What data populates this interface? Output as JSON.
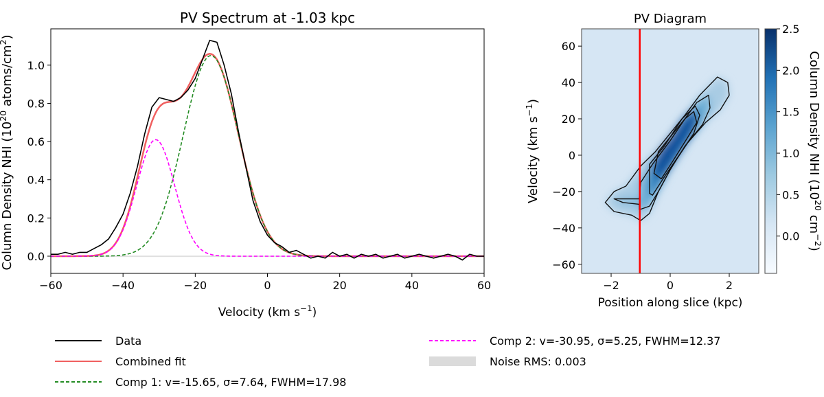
{
  "chart_data": [
    {
      "type": "line",
      "title": "PV Spectrum at -1.03 kpc",
      "xlabel": "Velocity (km s⁻¹)",
      "ylabel": "Column Density NHI (10²⁰ atoms/cm²)",
      "xlim": [
        -60,
        60
      ],
      "ylim": [
        -0.09,
        1.19
      ],
      "xticks": [
        -60,
        -40,
        -20,
        0,
        20,
        40,
        60
      ],
      "yticks": [
        0.0,
        0.2,
        0.4,
        0.6,
        0.8,
        1.0
      ],
      "grid": false,
      "legend_placement": "below",
      "data": {
        "name": "Data",
        "color": "#000000",
        "x": [
          -60,
          -58,
          -56,
          -54,
          -52,
          -50,
          -48,
          -46,
          -44,
          -42,
          -40,
          -38,
          -36,
          -34,
          -32,
          -30,
          -28,
          -26,
          -24,
          -22,
          -20,
          -18,
          -16,
          -14,
          -12,
          -10,
          -8,
          -6,
          -4,
          -2,
          0,
          2,
          4,
          6,
          8,
          10,
          12,
          14,
          16,
          18,
          20,
          22,
          24,
          26,
          28,
          30,
          32,
          34,
          36,
          38,
          40,
          42,
          44,
          46,
          48,
          50,
          52,
          54,
          56,
          58,
          60
        ],
        "y": [
          0.01,
          0.01,
          0.02,
          0.01,
          0.02,
          0.02,
          0.04,
          0.06,
          0.09,
          0.15,
          0.22,
          0.33,
          0.47,
          0.64,
          0.78,
          0.83,
          0.82,
          0.81,
          0.83,
          0.87,
          0.93,
          1.03,
          1.13,
          1.12,
          1.0,
          0.85,
          0.65,
          0.47,
          0.29,
          0.18,
          0.11,
          0.07,
          0.05,
          0.02,
          0.03,
          0.01,
          -0.01,
          0.0,
          -0.01,
          0.02,
          0.0,
          0.01,
          -0.01,
          0.01,
          0.0,
          0.01,
          -0.01,
          0.0,
          0.01,
          -0.01,
          0.0,
          0.01,
          0.0,
          -0.01,
          0.0,
          0.01,
          0.0,
          -0.02,
          0.01,
          0.0,
          0.0
        ]
      },
      "combined_fit": {
        "name": "Combined fit",
        "color": "#f06060"
      },
      "components": [
        {
          "name": "Comp 1: v=-15.65, σ=7.64, FWHM=17.98",
          "center": -15.65,
          "sigma": 7.64,
          "amplitude": 1.05,
          "color": "#228b22",
          "style": "dashed"
        },
        {
          "name": "Comp 2: v=-30.95, σ=5.25, FWHM=12.37",
          "center": -30.95,
          "sigma": 5.25,
          "amplitude": 0.61,
          "color": "#ff00ff",
          "style": "dashed"
        }
      ],
      "noise": {
        "name": "Noise RMS: 0.003",
        "rms": 0.003,
        "color": "#cccccc"
      }
    },
    {
      "type": "heatmap",
      "title": "PV Diagram",
      "xlabel": "Position along slice (kpc)",
      "ylabel": "Velocity (km s⁻¹)",
      "xlim": [
        -3,
        3
      ],
      "ylim": [
        -65,
        69.5
      ],
      "xticks": [
        -2,
        0,
        2
      ],
      "yticks": [
        -60,
        -40,
        -20,
        0,
        20,
        40,
        60
      ],
      "colormap": "Blues",
      "colorbar": {
        "label": "Column Density NHI (10²⁰ cm⁻²)",
        "range": [
          -0.45,
          2.5
        ],
        "ticks": [
          0.0,
          0.5,
          1.0,
          1.5,
          2.0,
          2.5
        ]
      },
      "slice_marker": {
        "position": -1.03,
        "color": "#ff0000"
      },
      "contours": [
        [
          [
            -1.9,
            -20
          ],
          [
            -1.5,
            -17
          ],
          [
            -1.0,
            -6
          ],
          [
            -0.5,
            2
          ],
          [
            0,
            12
          ],
          [
            0.5,
            22
          ],
          [
            1.0,
            33
          ],
          [
            1.6,
            43
          ],
          [
            1.95,
            40
          ],
          [
            2.0,
            33
          ],
          [
            1.7,
            25
          ],
          [
            1.2,
            18
          ],
          [
            0.6,
            7
          ],
          [
            0.1,
            -5
          ],
          [
            -0.4,
            -20
          ],
          [
            -0.7,
            -32
          ],
          [
            -1.0,
            -36
          ],
          [
            -1.3,
            -33
          ],
          [
            -1.9,
            -31
          ],
          [
            -2.2,
            -26
          ]
        ],
        [
          [
            -1.05,
            -30
          ],
          [
            -1.05,
            -27
          ],
          [
            -1.6,
            -26
          ],
          [
            -1.9,
            -24
          ],
          [
            -1.05,
            -24
          ],
          [
            -1.0,
            -15
          ],
          [
            -0.6,
            -5
          ],
          [
            0,
            8
          ],
          [
            0.5,
            20
          ],
          [
            0.9,
            29
          ],
          [
            1.3,
            33
          ],
          [
            1.35,
            26
          ],
          [
            1.1,
            17
          ],
          [
            0.5,
            5
          ],
          [
            0,
            -8
          ],
          [
            -0.4,
            -20
          ],
          [
            -0.7,
            -28
          ]
        ],
        [
          [
            -0.7,
            -21
          ],
          [
            -0.7,
            -5
          ],
          [
            -0.2,
            5
          ],
          [
            0.4,
            20
          ],
          [
            0.85,
            27
          ],
          [
            1.0,
            22
          ],
          [
            0.8,
            12
          ],
          [
            0.3,
            0
          ],
          [
            -0.2,
            -12
          ],
          [
            -0.6,
            -22
          ]
        ],
        [
          [
            -0.55,
            -10
          ],
          [
            -0.4,
            2
          ],
          [
            0,
            10
          ],
          [
            0.5,
            20
          ],
          [
            0.8,
            24
          ],
          [
            0.9,
            18
          ],
          [
            0.6,
            10
          ],
          [
            0.1,
            -3
          ],
          [
            -0.3,
            -13
          ]
        ]
      ]
    }
  ]
}
